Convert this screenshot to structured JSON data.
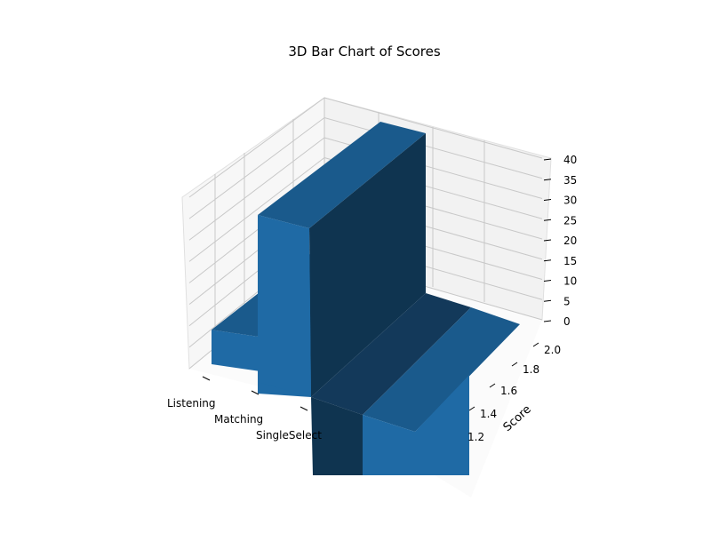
{
  "chart_data": {
    "type": "bar3d",
    "title": "3D Bar Chart of Scores",
    "xlabel": "",
    "ylabel": "Score",
    "zlabel": "",
    "categories": [
      "Listening",
      "Matching",
      "SingleSelect"
    ],
    "y_ticks": [
      "1.2",
      "1.4",
      "1.6",
      "1.8",
      "2.0"
    ],
    "z_ticks": [
      "0",
      "5",
      "10",
      "15",
      "20",
      "25",
      "30",
      "35",
      "40"
    ],
    "zlim": [
      0,
      40
    ],
    "grid": true,
    "bars": [
      {
        "category": "Listening",
        "value": 5
      },
      {
        "category": "Matching",
        "value": 27
      },
      {
        "category": "SingleSelect",
        "value": 40
      }
    ],
    "colors": {
      "bar_front": "#1f6aa5",
      "bar_top": "#1a5a8c",
      "bar_side": "#0f3450",
      "pane_back": "#f2f2f2",
      "pane_left": "#f7f7f7",
      "grid": "#c8c8c8"
    }
  }
}
